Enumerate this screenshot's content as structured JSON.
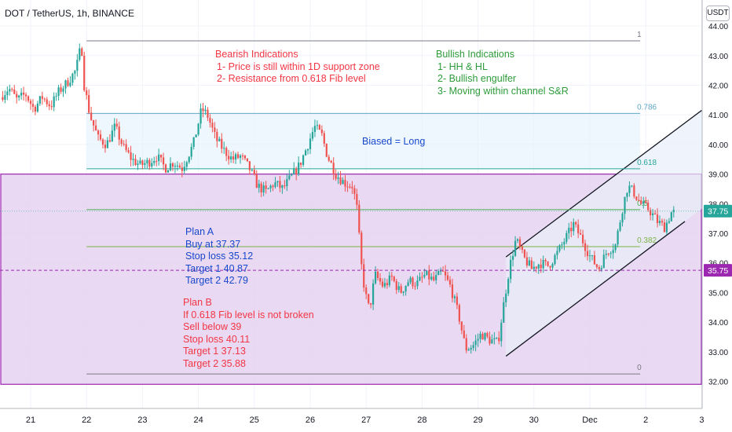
{
  "header": {
    "title": "DOT / TetherUS, 1h, BINANCE",
    "currency_button": "USDT"
  },
  "notes": {
    "bearish": [
      "Bearish Indications",
      "1- Price is still within 1D support zone",
      "2- Resistance from 0.618 Fib level"
    ],
    "bullish": [
      "Bullish Indications",
      "1- HH & HL",
      "2- Bullish engulfer",
      "3- Moving within channel S&R"
    ],
    "bias": "Biased = Long",
    "plan_a": [
      "Plan A",
      "Buy at 37.37",
      "Stop loss 35.12",
      "Target 1 40.87",
      "Target 2 42.79"
    ],
    "plan_b": [
      "Plan B",
      "If 0.618 Fib level is not broken",
      "Sell below 39",
      "Stop loss 40.11",
      "Target 1 37.13",
      "Target 2 35.88"
    ]
  },
  "colors": {
    "up": "#26a69a",
    "down": "#ef5350",
    "zone_fill": "#e6d2f0",
    "zone_border": "#9c27b0",
    "channel_fill": "#e8eefa",
    "fib_1": "#787b86",
    "fib_786": "#5fa8c8",
    "fib_618": "#26a69a",
    "fib_5": "#4caf50",
    "fib_382": "#7cb342",
    "fib_0": "#787b86",
    "price_tag_green": "#26a69a",
    "price_tag_purple": "#9c27b0"
  },
  "chart_data": {
    "type": "candlestick",
    "symbol": "DOT / TetherUS",
    "interval": "1h",
    "exchange": "BINANCE",
    "ylim": [
      31.7,
      44.2
    ],
    "y_ticks": [
      32.0,
      33.0,
      34.0,
      35.0,
      36.0,
      37.0,
      38.0,
      39.0,
      40.0,
      41.0,
      42.0,
      43.0,
      44.0
    ],
    "y_tick_labels": [
      "32.00",
      "33.00",
      "34.00",
      "35.00",
      "36.00",
      "37.00",
      "38.00",
      "39.00",
      "40.00",
      "41.00",
      "42.00",
      "43.00",
      "44.00"
    ],
    "x_ticks": [
      {
        "label": "21",
        "t": 0
      },
      {
        "label": "22",
        "t": 1
      },
      {
        "label": "23",
        "t": 2
      },
      {
        "label": "24",
        "t": 3
      },
      {
        "label": "25",
        "t": 4
      },
      {
        "label": "26",
        "t": 5
      },
      {
        "label": "27",
        "t": 6
      },
      {
        "label": "28",
        "t": 7
      },
      {
        "label": "29",
        "t": 8
      },
      {
        "label": "30",
        "t": 9
      },
      {
        "label": "Dec",
        "t": 10
      },
      {
        "label": "2",
        "t": 11
      },
      {
        "label": "3",
        "t": 12
      }
    ],
    "price_path": [
      [
        -0.5,
        41.6
      ],
      [
        -0.35,
        41.9
      ],
      [
        -0.2,
        41.5
      ],
      [
        -0.05,
        41.7
      ],
      [
        0.1,
        41.2
      ],
      [
        0.25,
        41.6
      ],
      [
        0.4,
        41.3
      ],
      [
        0.55,
        41.8
      ],
      [
        0.7,
        42.1
      ],
      [
        0.85,
        42.5
      ],
      [
        0.95,
        43.4
      ],
      [
        1.0,
        42.0
      ],
      [
        1.1,
        41.0
      ],
      [
        1.25,
        40.2
      ],
      [
        1.4,
        40.0
      ],
      [
        1.55,
        40.6
      ],
      [
        1.7,
        39.9
      ],
      [
        1.85,
        39.5
      ],
      [
        2.0,
        39.3
      ],
      [
        2.15,
        39.4
      ],
      [
        2.3,
        39.6
      ],
      [
        2.45,
        39.2
      ],
      [
        2.6,
        39.4
      ],
      [
        2.75,
        39.2
      ],
      [
        2.95,
        40.0
      ],
      [
        3.1,
        41.2
      ],
      [
        3.2,
        41.0
      ],
      [
        3.35,
        40.2
      ],
      [
        3.5,
        39.8
      ],
      [
        3.65,
        39.5
      ],
      [
        3.8,
        39.6
      ],
      [
        3.95,
        39.2
      ],
      [
        4.1,
        38.6
      ],
      [
        4.25,
        38.4
      ],
      [
        4.4,
        38.7
      ],
      [
        4.55,
        38.5
      ],
      [
        4.7,
        38.9
      ],
      [
        4.85,
        39.3
      ],
      [
        5.0,
        40.0
      ],
      [
        5.12,
        40.6
      ],
      [
        5.25,
        40.3
      ],
      [
        5.35,
        39.6
      ],
      [
        5.5,
        39.0
      ],
      [
        5.65,
        38.7
      ],
      [
        5.8,
        38.6
      ],
      [
        5.88,
        37.8
      ],
      [
        5.95,
        36.0
      ],
      [
        6.02,
        35.0
      ],
      [
        6.1,
        34.4
      ],
      [
        6.2,
        35.6
      ],
      [
        6.35,
        35.2
      ],
      [
        6.5,
        35.5
      ],
      [
        6.65,
        35.0
      ],
      [
        6.8,
        35.4
      ],
      [
        6.95,
        35.3
      ],
      [
        7.1,
        35.6
      ],
      [
        7.25,
        35.4
      ],
      [
        7.4,
        35.7
      ],
      [
        7.55,
        35.2
      ],
      [
        7.7,
        34.2
      ],
      [
        7.82,
        33.1
      ],
      [
        7.95,
        33.2
      ],
      [
        8.1,
        33.6
      ],
      [
        8.25,
        33.4
      ],
      [
        8.4,
        33.3
      ],
      [
        8.5,
        34.6
      ],
      [
        8.6,
        35.8
      ],
      [
        8.72,
        36.8
      ],
      [
        8.85,
        36.2
      ],
      [
        9.0,
        35.8
      ],
      [
        9.15,
        36.0
      ],
      [
        9.3,
        35.9
      ],
      [
        9.45,
        36.3
      ],
      [
        9.6,
        36.8
      ],
      [
        9.75,
        37.3
      ],
      [
        9.9,
        36.8
      ],
      [
        10.05,
        36.2
      ],
      [
        10.2,
        35.8
      ],
      [
        10.35,
        36.4
      ],
      [
        10.5,
        36.6
      ],
      [
        10.62,
        37.8
      ],
      [
        10.72,
        38.6
      ],
      [
        10.82,
        38.4
      ],
      [
        10.95,
        38.0
      ],
      [
        11.1,
        37.8
      ],
      [
        11.25,
        37.4
      ],
      [
        11.38,
        37.2
      ],
      [
        11.5,
        37.7
      ]
    ],
    "fib_levels": [
      {
        "label": "1",
        "value": 43.5
      },
      {
        "label": "0.786",
        "value": 41.05
      },
      {
        "label": "0.618",
        "value": 39.18
      },
      {
        "label": "0.5",
        "value": 37.8
      },
      {
        "label": "0.382",
        "value": 36.55
      },
      {
        "label": "0",
        "value": 32.25
      }
    ],
    "support_zone": [
      31.9,
      39.0
    ],
    "channel": {
      "upper": [
        [
          8.5,
          36.2
        ],
        [
          12.0,
          41.15
        ]
      ],
      "lower": [
        [
          8.5,
          32.85
        ],
        [
          11.7,
          37.4
        ]
      ]
    },
    "dashed_level": 35.75,
    "price_tags": [
      {
        "label": "37.75",
        "value": 37.75,
        "color": "#26a69a"
      },
      {
        "label": "35.75",
        "value": 35.75,
        "color": "#9c27b0"
      }
    ]
  }
}
